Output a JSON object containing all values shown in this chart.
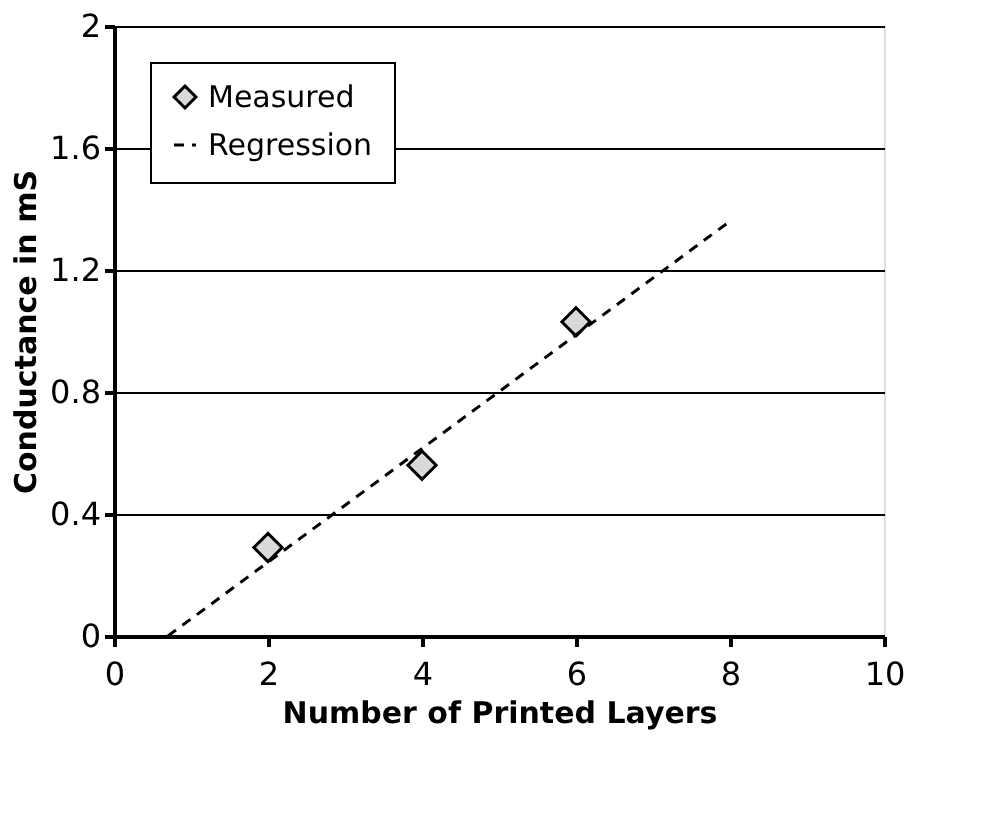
{
  "chart_data": {
    "type": "scatter",
    "xlabel": "Number of Printed Layers",
    "ylabel": "Conductance in mS",
    "series": [
      {
        "name": "Measured",
        "marker": "diamond",
        "color": "#d9d9d9",
        "x": [
          2,
          4,
          6
        ],
        "values": [
          0.29,
          0.56,
          1.03
        ]
      },
      {
        "name": "Regression",
        "type": "line",
        "line_style": "dashed",
        "color": "#000000",
        "x": [
          0.7,
          8
        ],
        "values": [
          0,
          1.36
        ]
      }
    ],
    "xlim": [
      0,
      10
    ],
    "xticks": [
      0,
      2,
      4,
      6,
      8,
      10
    ],
    "ylim": [
      0,
      2
    ],
    "yticks": [
      0,
      0.4,
      0.8,
      1.2,
      1.6,
      2
    ],
    "grid": "y",
    "legend": "top left"
  }
}
